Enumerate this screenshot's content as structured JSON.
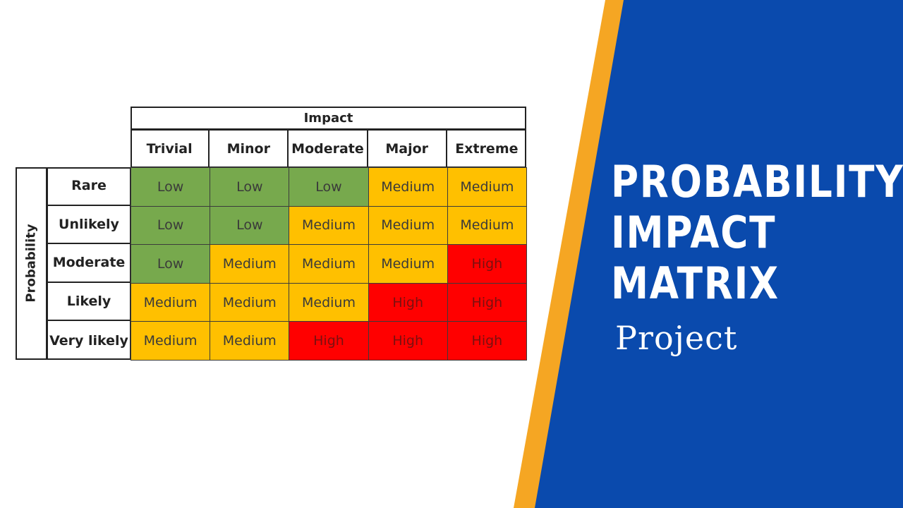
{
  "colors": {
    "blue_panel": "#0a4aad",
    "orange_stripe": "#f5a623",
    "low": "#77a94d",
    "medium": "#ffc000",
    "high": "#ff0000"
  },
  "matrix": {
    "impact_title": "Impact",
    "probability_title": "Probability",
    "columns": [
      "Trivial",
      "Minor",
      "Moderate",
      "Major",
      "Extreme"
    ],
    "rows": [
      {
        "label": "Rare",
        "cells": [
          "Low",
          "Low",
          "Low",
          "Medium",
          "Medium"
        ]
      },
      {
        "label": "Unlikely",
        "cells": [
          "Low",
          "Low",
          "Medium",
          "Medium",
          "Medium"
        ]
      },
      {
        "label": "Moderate",
        "cells": [
          "Low",
          "Medium",
          "Medium",
          "Medium",
          "High"
        ]
      },
      {
        "label": "Likely",
        "cells": [
          "Medium",
          "Medium",
          "Medium",
          "High",
          "High"
        ]
      },
      {
        "label": "Very likely",
        "cells": [
          "Medium",
          "Medium",
          "High",
          "High",
          "High"
        ]
      }
    ]
  },
  "title": {
    "line1": "PROBABILITY",
    "line2": "IMPACT",
    "line3": "MATRIX",
    "subtitle": "Project"
  }
}
